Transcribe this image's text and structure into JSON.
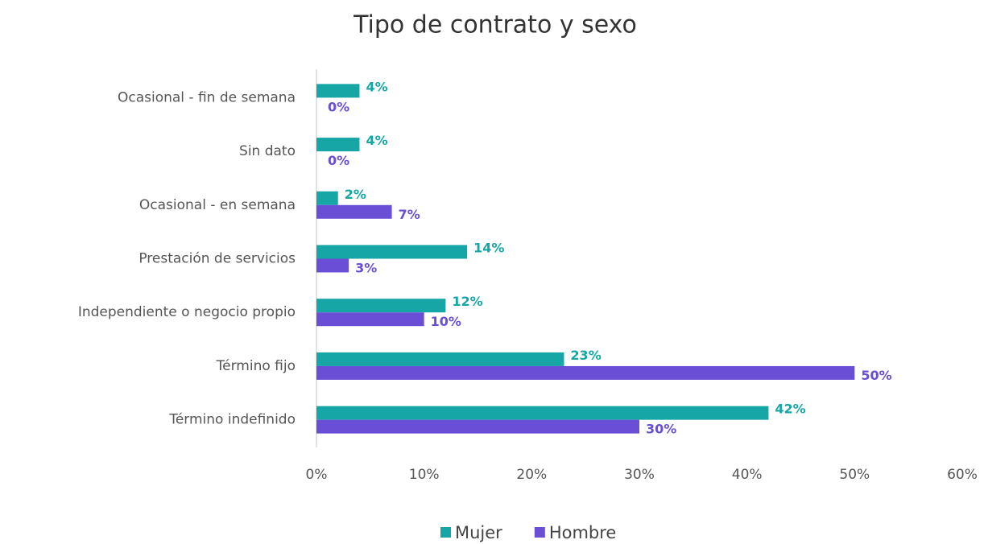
{
  "chart_data": {
    "type": "hbar",
    "title": "Tipo de contrato y sexo",
    "categories": [
      "Ocasional - fin de semana",
      "Sin dato",
      "Ocasional - en semana",
      "Prestación de servicios",
      "Independiente o negocio propio",
      "Término fijo",
      "Término indefinido"
    ],
    "series": [
      {
        "name": "Mujer",
        "color": "#16a6a6",
        "values": [
          4,
          4,
          2,
          14,
          12,
          23,
          42
        ],
        "value_labels": [
          "4%",
          "4%",
          "2%",
          "14%",
          "12%",
          "23%",
          "42%"
        ]
      },
      {
        "name": "Hombre",
        "color": "#6a4fd6",
        "values": [
          0,
          0,
          7,
          3,
          10,
          50,
          30
        ],
        "value_labels": [
          "0%",
          "0%",
          "7%",
          "3%",
          "10%",
          "50%",
          "30%"
        ]
      }
    ],
    "xlim": [
      0,
      60
    ],
    "xticks": [
      {
        "value": 0,
        "label": "0%"
      },
      {
        "value": 10,
        "label": "10%"
      },
      {
        "value": 20,
        "label": "20%"
      },
      {
        "value": 30,
        "label": "30%"
      },
      {
        "value": 40,
        "label": "40%"
      },
      {
        "value": 50,
        "label": "50%"
      },
      {
        "value": 60,
        "label": "60%"
      }
    ],
    "legend": "bottom"
  }
}
